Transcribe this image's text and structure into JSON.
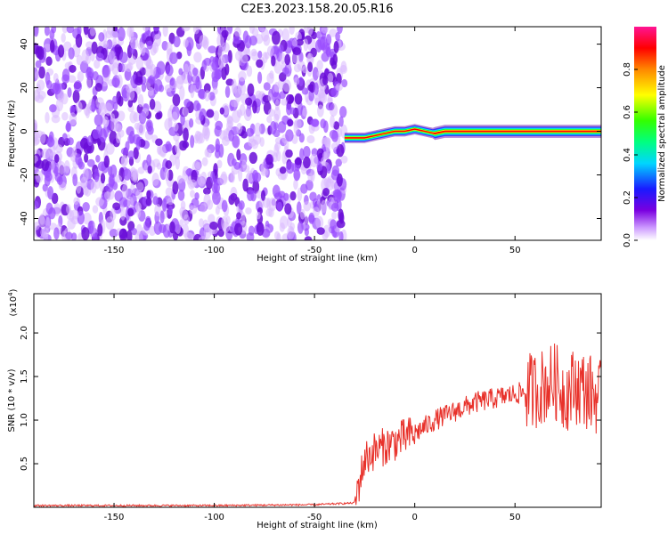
{
  "title": "C2E3.2023.158.20.05.R16",
  "chart_data": [
    {
      "type": "heatmap",
      "xlabel": "Height of straight line (km)",
      "ylabel": "Frequency (Hz)",
      "xlim": [
        -190,
        93
      ],
      "ylim": [
        -50,
        48
      ],
      "x_ticks": [
        -150,
        -100,
        -50,
        0,
        50
      ],
      "y_ticks": [
        -40,
        -20,
        0,
        20,
        40
      ],
      "colorbar": {
        "label": "Normalized spectral amplitude",
        "range": [
          0.0,
          1.0
        ],
        "ticks": [
          0.0,
          0.2,
          0.4,
          0.6,
          0.8
        ],
        "colormap": [
          "#ffffff",
          "#6a0dad",
          "#2f2fff",
          "#00e5ff",
          "#00ff40",
          "#ffff00",
          "#ff8c00",
          "#ff0000",
          "#ff1493"
        ]
      },
      "description_regions": [
        {
          "x_range": [
            -190,
            -35
          ],
          "content": "broadband noise across all frequencies, amplitude 0.0-0.3"
        },
        {
          "x_range": [
            -35,
            93
          ],
          "content": "narrow signal band near 0 Hz, amplitude up to ~1.0"
        }
      ],
      "signal_ridge": {
        "x": [
          -35,
          -30,
          -25,
          -20,
          -15,
          -10,
          -5,
          0,
          5,
          10,
          15,
          20,
          30,
          40,
          50,
          60,
          70,
          80,
          93
        ],
        "y": [
          -3,
          -3,
          -3,
          -2,
          -1,
          0,
          0,
          1,
          0,
          -1,
          0,
          0,
          0,
          0,
          0,
          0,
          0,
          0,
          0
        ]
      }
    },
    {
      "type": "line",
      "xlabel": "Height of straight line (km)",
      "ylabel": "SNR (10 * v/v)",
      "y_multiplier": "(x10",
      "y_multiplier_exp": "4",
      "y_multiplier_close": ")",
      "xlim": [
        -190,
        93
      ],
      "ylim": [
        0,
        2.45
      ],
      "x_ticks": [
        -150,
        -100,
        -50,
        0,
        50
      ],
      "y_ticks": [
        0.5,
        1.0,
        1.5,
        2.0
      ],
      "series": [
        {
          "color": "#e8312a",
          "x": [
            -190,
            -150,
            -100,
            -50,
            -30,
            -25,
            -20,
            -10,
            0,
            10,
            20,
            30,
            40,
            50,
            60,
            65,
            70,
            75,
            80,
            85,
            93
          ],
          "y": [
            0.02,
            0.02,
            0.02,
            0.03,
            0.05,
            0.55,
            0.65,
            0.75,
            0.85,
            1.0,
            1.1,
            1.2,
            1.25,
            1.3,
            1.35,
            1.4,
            1.45,
            1.3,
            1.4,
            1.35,
            1.25
          ]
        }
      ]
    }
  ]
}
